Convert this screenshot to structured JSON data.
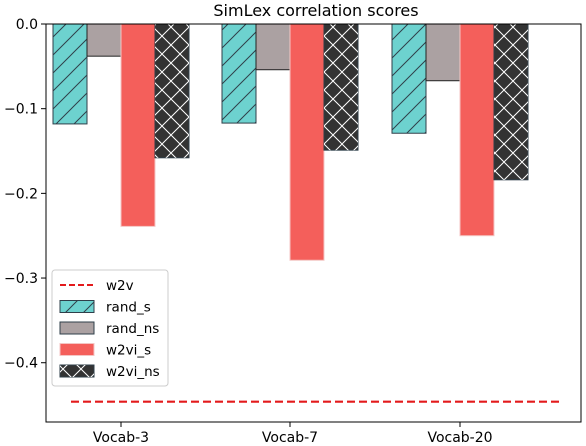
{
  "chart_data": {
    "type": "bar",
    "title": "SimLex correlation scores",
    "xlabel": "",
    "ylabel": "",
    "ylim": [
      -0.47,
      0.0
    ],
    "yticks": [
      0.0,
      -0.1,
      -0.2,
      -0.3,
      -0.4
    ],
    "ytick_labels": [
      "0.0",
      "−0.1",
      "−0.2",
      "−0.3",
      "−0.4"
    ],
    "categories": [
      "Vocab-3",
      "Vocab-7",
      "Vocab-20"
    ],
    "grid": false,
    "legend_position": "lower-left",
    "series": [
      {
        "name": "rand_s",
        "values": [
          -0.118,
          -0.117,
          -0.129
        ],
        "color": "#6dd2cf",
        "hatch": "diagonal"
      },
      {
        "name": "rand_ns",
        "values": [
          -0.038,
          -0.054,
          -0.067
        ],
        "color": "#aba1a2",
        "hatch": "none"
      },
      {
        "name": "w2vi_s",
        "values": [
          -0.239,
          -0.279,
          -0.25
        ],
        "color": "#f45f5b",
        "hatch": "none"
      },
      {
        "name": "w2vi_ns",
        "values": [
          -0.158,
          -0.149,
          -0.184
        ],
        "color": "#333333",
        "hatch": "cross"
      }
    ],
    "reference_line": {
      "name": "w2v",
      "value": -0.446,
      "color": "#e31a1c",
      "style": "dashed"
    }
  }
}
